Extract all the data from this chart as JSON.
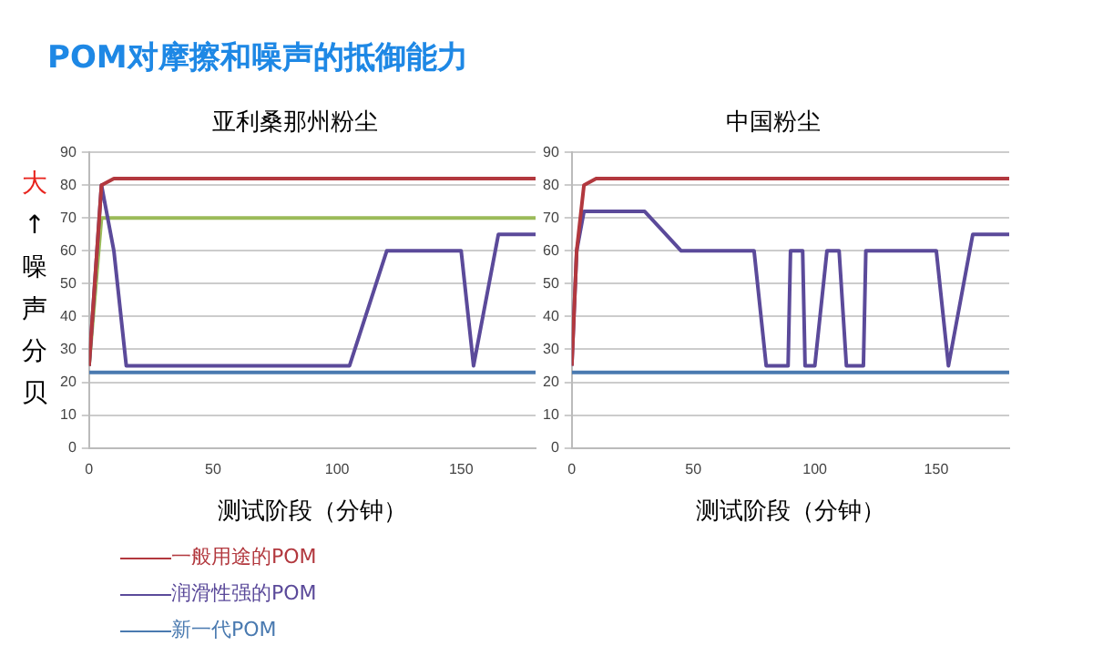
{
  "chart_data": [
    {
      "type": "line",
      "title": "亚利桑那州粉尘",
      "xlabel": "测试阶段（分钟）",
      "ylabel": "大↑噪声分贝",
      "annotations": [
        "POM对摩擦和噪声的抵御能力"
      ],
      "xlim": [
        0,
        180
      ],
      "xticks": [
        0,
        50,
        100,
        150
      ],
      "ylim": [
        0,
        90
      ],
      "yticks": [
        0,
        10,
        20,
        30,
        40,
        50,
        60,
        70,
        80,
        90
      ],
      "grid": "y",
      "legend": "bottom",
      "marker": "none",
      "line_style": "solid",
      "series": [
        {
          "name": "一般用途的POM",
          "color": "#b2383e",
          "x": [
            0,
            5,
            10,
            180
          ],
          "values": [
            25,
            80,
            82,
            82
          ]
        },
        {
          "name": "润滑性强的POM",
          "color": "#5b4a9a",
          "x": [
            0,
            5,
            10,
            15,
            105,
            120,
            150,
            155,
            165,
            180
          ],
          "values": [
            25,
            80,
            60,
            25,
            25,
            60,
            60,
            25,
            65,
            65
          ]
        },
        {
          "name": "新一代POM",
          "color": "#4a7ab0",
          "x": [
            0,
            180
          ],
          "values": [
            23,
            23
          ]
        },
        {
          "color": "#9bbb59",
          "x": [
            0,
            5,
            180
          ],
          "values": [
            25,
            70,
            70
          ]
        }
      ]
    },
    {
      "type": "line",
      "title": "中国粉尘",
      "xlabel": "测试阶段（分钟）",
      "xlim": [
        0,
        180
      ],
      "xticks": [
        0,
        50,
        100,
        150
      ],
      "ylim": [
        0,
        90
      ],
      "yticks": [
        0,
        10,
        20,
        30,
        40,
        50,
        60,
        70,
        80,
        90
      ],
      "grid": "y",
      "marker": "none",
      "line_style": "solid",
      "series": [
        {
          "color": "#b2383e",
          "x": [
            0,
            2,
            5,
            10,
            180
          ],
          "values": [
            25,
            60,
            80,
            82,
            82
          ]
        },
        {
          "color": "#5b4a9a",
          "x": [
            0,
            2,
            5,
            30,
            45,
            75,
            80,
            89,
            90,
            95,
            96,
            100,
            105,
            110,
            113,
            120,
            121,
            150,
            155,
            165,
            180
          ],
          "values": [
            25,
            60,
            72,
            72,
            60,
            60,
            25,
            25,
            60,
            60,
            25,
            25,
            60,
            60,
            25,
            25,
            60,
            60,
            25,
            65,
            65
          ]
        },
        {
          "color": "#4a7ab0",
          "x": [
            0,
            180
          ],
          "values": [
            23,
            23
          ]
        }
      ]
    }
  ]
}
